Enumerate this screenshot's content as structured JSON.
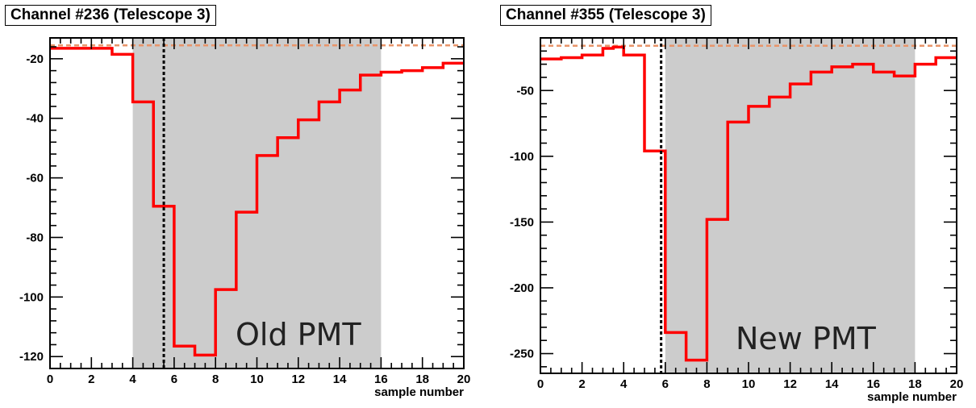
{
  "chart_data": [
    {
      "type": "step",
      "title": "Channel #236 (Telescope 3)",
      "xlabel": "sample number",
      "ylabel": "",
      "xlim": [
        0,
        20
      ],
      "ylim": [
        -124,
        -13
      ],
      "xticks": [
        0,
        2,
        4,
        6,
        8,
        10,
        12,
        14,
        16,
        18,
        20
      ],
      "yticks": [
        -20,
        -40,
        -60,
        -80,
        -100,
        -120
      ],
      "shaded_region": [
        4,
        16
      ],
      "vline_x": 5.5,
      "hline_y": -15.5,
      "annotation": "Old PMT",
      "bin_edges": [
        0,
        1,
        2,
        3,
        4,
        5,
        6,
        7,
        8,
        9,
        10,
        11,
        12,
        13,
        14,
        15,
        16,
        17,
        18,
        19,
        20
      ],
      "values": [
        -16.5,
        -16.5,
        -16.5,
        -18.5,
        -34.5,
        -69.5,
        -116.5,
        -119.5,
        -97.5,
        -71.5,
        -52.5,
        -46.5,
        -40.5,
        -34.5,
        -30.5,
        -25.5,
        -24.5,
        -24,
        -23,
        -21.5
      ],
      "colors": {
        "line": "#ff0000",
        "shade": "#cccccc",
        "hline": "#e8956a",
        "vline": "#000000"
      }
    },
    {
      "type": "step",
      "title": "Channel #355 (Telescope 3)",
      "xlabel": "sample number",
      "ylabel": "",
      "xlim": [
        0,
        20
      ],
      "ylim": [
        -265,
        -10
      ],
      "xticks": [
        0,
        2,
        4,
        6,
        8,
        10,
        12,
        14,
        16,
        18,
        20
      ],
      "yticks": [
        -50,
        -100,
        -150,
        -200,
        -250
      ],
      "shaded_region": [
        6,
        18
      ],
      "vline_x": 5.8,
      "hline_y": -16,
      "annotation": "New PMT",
      "bin_edges": [
        0,
        1,
        2,
        3,
        3.5,
        4,
        5,
        6,
        7,
        8,
        9,
        10,
        11,
        12,
        13,
        14,
        15,
        16,
        17,
        18,
        19,
        20
      ],
      "values": [
        -26,
        -25,
        -23,
        -18,
        -17,
        -23,
        -96,
        -234,
        -255,
        -148,
        -74,
        -62,
        -55,
        -45,
        -36,
        -32,
        -30,
        -36,
        -39,
        -30,
        -25
      ],
      "colors": {
        "line": "#ff0000",
        "shade": "#cccccc",
        "hline": "#e8956a",
        "vline": "#000000"
      }
    }
  ]
}
